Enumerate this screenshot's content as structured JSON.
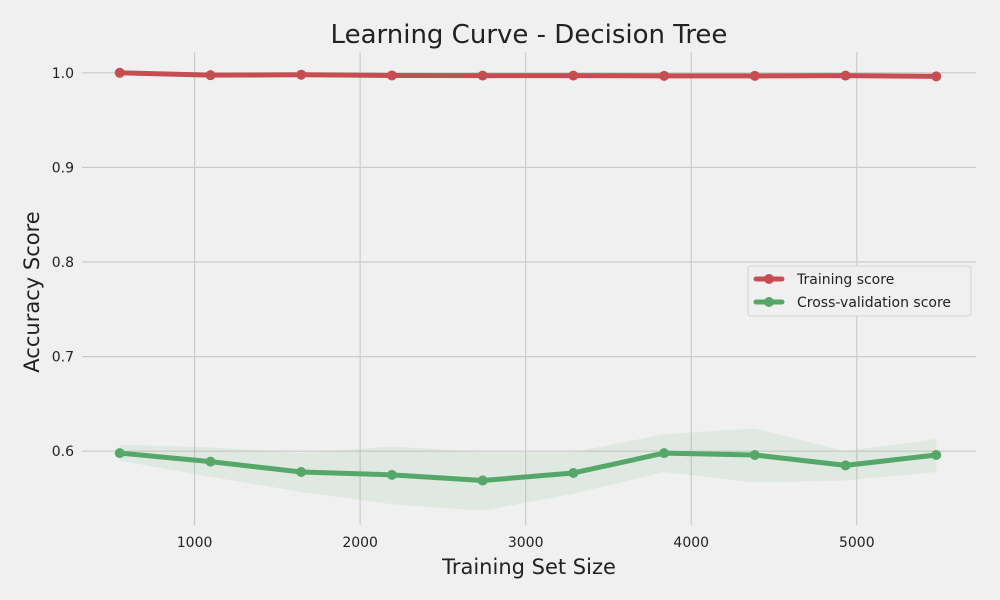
{
  "chart_data": {
    "type": "line",
    "title": "Learning Curve - Decision Tree",
    "xlabel": "Training Set Size",
    "ylabel": "Accuracy Score",
    "xlim": [
      320,
      5720
    ],
    "ylim": [
      0.522,
      1.022
    ],
    "xticks": [
      1000,
      2000,
      3000,
      4000,
      5000
    ],
    "yticks": [
      0.6,
      0.7,
      0.8,
      0.9,
      1.0
    ],
    "xtick_labels": [
      "1000",
      "2000",
      "3000",
      "4000",
      "5000"
    ],
    "ytick_labels": [
      "0.6",
      "0.7",
      "0.8",
      "0.9",
      "1.0"
    ],
    "grid": true,
    "legend_position": "center-right",
    "x": [
      548,
      1096,
      1644,
      2192,
      2740,
      3288,
      3836,
      4384,
      4932,
      5480
    ],
    "series": [
      {
        "name": "Training score",
        "color": "#c44e52",
        "values": [
          1.0,
          0.9975,
          0.998,
          0.9972,
          0.997,
          0.997,
          0.9968,
          0.9968,
          0.997,
          0.9962
        ],
        "band_lower": [
          0.9995,
          0.997,
          0.9975,
          0.9968,
          0.9965,
          0.9966,
          0.9963,
          0.9963,
          0.9965,
          0.9956
        ],
        "band_upper": [
          1.0005,
          0.998,
          0.9985,
          0.9976,
          0.9975,
          0.9974,
          0.9973,
          0.9973,
          0.9975,
          0.9968
        ]
      },
      {
        "name": "Cross-validation score",
        "color": "#55a868",
        "values": [
          0.598,
          0.589,
          0.578,
          0.575,
          0.569,
          0.577,
          0.598,
          0.596,
          0.585,
          0.596
        ],
        "band_lower": [
          0.59,
          0.573,
          0.557,
          0.544,
          0.537,
          0.555,
          0.578,
          0.567,
          0.569,
          0.578
        ],
        "band_upper": [
          0.607,
          0.604,
          0.598,
          0.605,
          0.599,
          0.599,
          0.618,
          0.624,
          0.6,
          0.613
        ]
      }
    ]
  }
}
